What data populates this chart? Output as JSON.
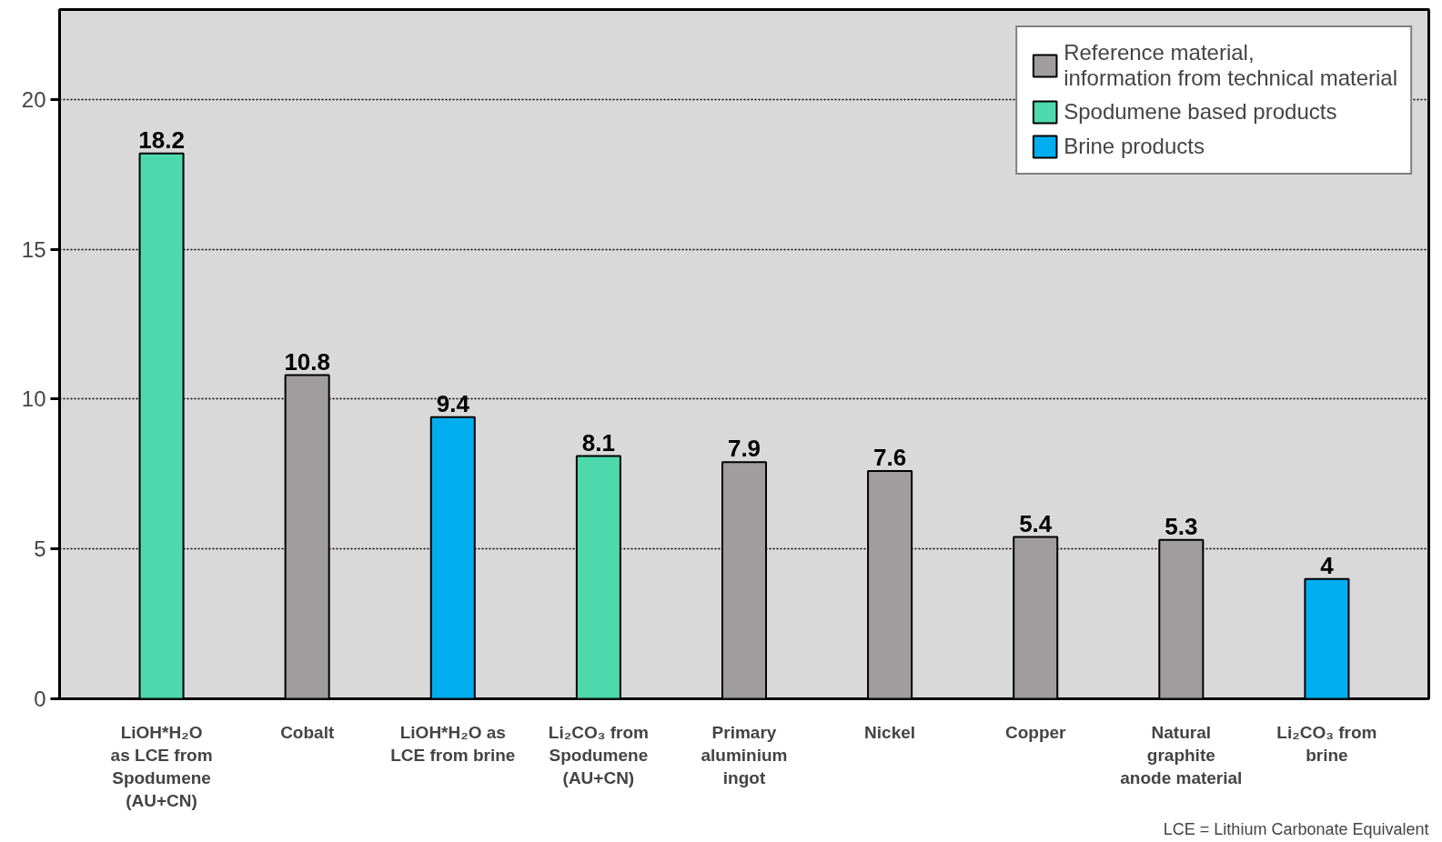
{
  "chart_data": {
    "type": "bar",
    "categories": [
      "LiOH*H₂O\nas LCE from\nSpodumene\n(AU+CN)",
      "Cobalt",
      "LiOH*H₂O as\nLCE from brine",
      "Li₂CO₃ from\nSpodumene\n(AU+CN)",
      "Primary\naluminium\ningot",
      "Nickel",
      "Copper",
      "Natural\ngraphite\nanode material",
      "Li₂CO₃ from\nbrine"
    ],
    "series": [
      {
        "name": "Reference material,\ninformation from technical material",
        "color": "#a09d9e",
        "values": [
          null,
          10.8,
          null,
          null,
          7.9,
          7.6,
          5.4,
          5.3,
          null
        ]
      },
      {
        "name": "Spodumene based products",
        "color": "#4dd9ac",
        "values": [
          18.2,
          null,
          null,
          8.1,
          null,
          null,
          null,
          null,
          null
        ]
      },
      {
        "name": "Brine products",
        "color": "#00aeef",
        "values": [
          null,
          null,
          9.4,
          null,
          null,
          null,
          null,
          null,
          4
        ]
      }
    ],
    "ylim": [
      0,
      23
    ],
    "yticks": [
      0,
      5,
      10,
      15,
      20
    ],
    "grid": "y",
    "legend": "top right",
    "data_labels": true,
    "annotations": [
      "LCE = Lithium Carbonate Equivalent"
    ]
  }
}
